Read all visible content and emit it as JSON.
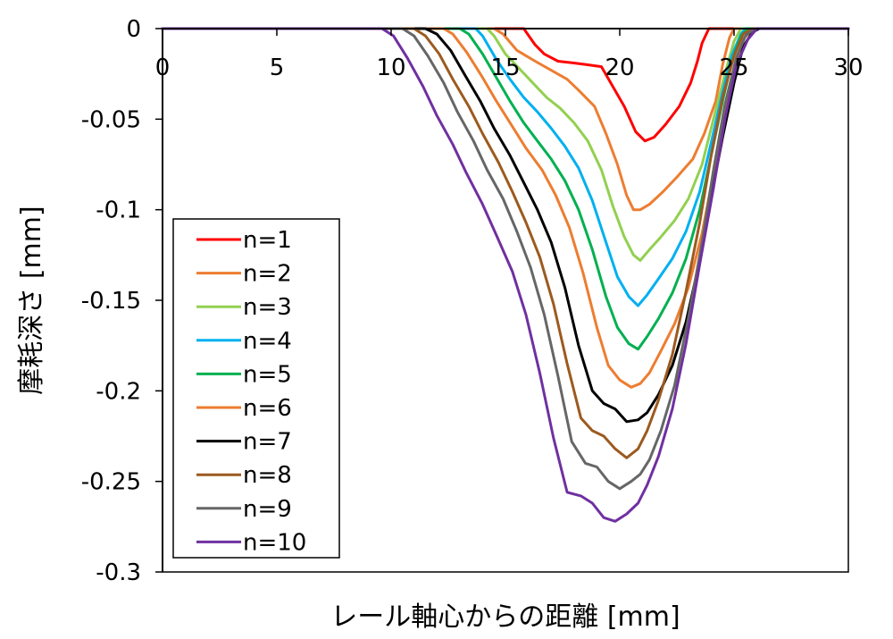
{
  "chart_data": {
    "type": "line",
    "title": "",
    "xlabel": "レール軸心からの距離 [mm]",
    "ylabel": "摩耗深さ [mm]",
    "xlim": [
      0,
      30
    ],
    "ylim": [
      -0.3,
      0
    ],
    "xticks": [
      0,
      5,
      10,
      15,
      20,
      25,
      30
    ],
    "yticks": [
      0,
      -0.05,
      -0.1,
      -0.15,
      -0.2,
      -0.25,
      -0.3
    ],
    "ytick_labels": [
      "0",
      "-0.05",
      "-0.1",
      "-0.15",
      "-0.2",
      "-0.25",
      "-0.3"
    ],
    "xaxis_position": "top",
    "grid": false,
    "legend_position": "lower-left",
    "series": [
      {
        "name": "n=1",
        "color": "#ff0000",
        "x": [
          0,
          15.8,
          16.3,
          16.7,
          17.3,
          18,
          18.6,
          19.2,
          19.7,
          20.2,
          20.7,
          21.1,
          21.5,
          22.0,
          22.6,
          23.1,
          23.4,
          23.6,
          23.9,
          24.2,
          30
        ],
        "y": [
          0,
          0,
          -0.009,
          -0.014,
          -0.018,
          -0.019,
          -0.02,
          -0.021,
          -0.032,
          -0.043,
          -0.057,
          -0.062,
          -0.06,
          -0.053,
          -0.043,
          -0.03,
          -0.018,
          -0.008,
          0,
          0,
          0
        ]
      },
      {
        "name": "n=2",
        "color": "#ed7d31",
        "x": [
          0,
          14.5,
          14.9,
          15.5,
          16.3,
          17.0,
          17.7,
          18.2,
          18.9,
          19.4,
          19.9,
          20.3,
          20.6,
          20.9,
          21.3,
          21.9,
          22.5,
          23.2,
          23.7,
          24.2,
          24.5,
          24.8,
          25.0,
          30
        ],
        "y": [
          0,
          0,
          -0.003,
          -0.012,
          -0.018,
          -0.023,
          -0.028,
          -0.034,
          -0.043,
          -0.058,
          -0.075,
          -0.092,
          -0.1,
          -0.1,
          -0.097,
          -0.09,
          -0.082,
          -0.072,
          -0.058,
          -0.04,
          -0.02,
          -0.005,
          0,
          0
        ]
      },
      {
        "name": "n=3",
        "color": "#92d050",
        "x": [
          0,
          14.2,
          14.5,
          15.0,
          15.6,
          16.2,
          16.8,
          17.4,
          18.0,
          18.6,
          19.2,
          19.7,
          20.2,
          20.6,
          20.9,
          21.3,
          21.8,
          22.4,
          23.0,
          23.6,
          24.1,
          24.6,
          25.0,
          25.3,
          30
        ],
        "y": [
          0,
          0,
          -0.004,
          -0.014,
          -0.022,
          -0.03,
          -0.038,
          -0.044,
          -0.052,
          -0.062,
          -0.078,
          -0.098,
          -0.115,
          -0.125,
          -0.128,
          -0.122,
          -0.115,
          -0.106,
          -0.094,
          -0.075,
          -0.05,
          -0.025,
          -0.007,
          0,
          0
        ]
      },
      {
        "name": "n=4",
        "color": "#00b0f0",
        "x": [
          0,
          13.7,
          14.0,
          14.6,
          15.2,
          15.8,
          16.4,
          17.0,
          17.6,
          18.2,
          18.8,
          19.4,
          19.9,
          20.4,
          20.8,
          21.2,
          21.7,
          22.3,
          22.9,
          23.5,
          24.0,
          24.5,
          24.9,
          25.3,
          25.5,
          30
        ],
        "y": [
          0,
          0,
          -0.004,
          -0.017,
          -0.028,
          -0.038,
          -0.046,
          -0.055,
          -0.065,
          -0.077,
          -0.095,
          -0.118,
          -0.137,
          -0.148,
          -0.153,
          -0.147,
          -0.138,
          -0.127,
          -0.112,
          -0.09,
          -0.063,
          -0.035,
          -0.015,
          -0.003,
          0,
          0
        ]
      },
      {
        "name": "n=5",
        "color": "#00b050",
        "x": [
          0,
          13.0,
          13.4,
          14.0,
          14.6,
          15.2,
          15.8,
          16.4,
          17.0,
          17.6,
          18.2,
          18.8,
          19.4,
          19.9,
          20.4,
          20.8,
          21.2,
          21.7,
          22.3,
          22.9,
          23.5,
          24.0,
          24.5,
          24.9,
          25.3,
          25.6,
          30
        ],
        "y": [
          0,
          0,
          -0.003,
          -0.014,
          -0.027,
          -0.04,
          -0.052,
          -0.062,
          -0.072,
          -0.084,
          -0.1,
          -0.122,
          -0.148,
          -0.165,
          -0.174,
          -0.177,
          -0.17,
          -0.16,
          -0.146,
          -0.127,
          -0.1,
          -0.07,
          -0.04,
          -0.018,
          -0.004,
          0,
          0
        ]
      },
      {
        "name": "n=6",
        "color": "#ed7d31",
        "x": [
          0,
          12.3,
          12.7,
          13.3,
          14.0,
          14.6,
          15.3,
          15.9,
          16.6,
          17.2,
          17.8,
          18.4,
          19.0,
          19.5,
          20.0,
          20.5,
          20.9,
          21.3,
          21.8,
          22.4,
          23.0,
          23.6,
          24.1,
          24.6,
          25.0,
          25.4,
          25.8,
          30
        ],
        "y": [
          0,
          0,
          -0.003,
          -0.013,
          -0.027,
          -0.04,
          -0.054,
          -0.066,
          -0.078,
          -0.092,
          -0.11,
          -0.135,
          -0.165,
          -0.186,
          -0.194,
          -0.198,
          -0.196,
          -0.19,
          -0.178,
          -0.163,
          -0.143,
          -0.113,
          -0.08,
          -0.047,
          -0.022,
          -0.006,
          0,
          0
        ]
      },
      {
        "name": "n=7",
        "color": "#000000",
        "x": [
          0,
          11.5,
          12.0,
          12.6,
          13.2,
          13.9,
          14.5,
          15.2,
          15.8,
          16.4,
          17.0,
          17.6,
          18.2,
          18.8,
          19.3,
          19.8,
          20.3,
          20.8,
          21.2,
          21.7,
          22.3,
          22.9,
          23.5,
          24.0,
          24.5,
          25.0,
          25.4,
          25.8,
          26.1,
          30
        ],
        "y": [
          0,
          0,
          -0.003,
          -0.012,
          -0.025,
          -0.04,
          -0.055,
          -0.07,
          -0.085,
          -0.1,
          -0.118,
          -0.143,
          -0.175,
          -0.2,
          -0.207,
          -0.21,
          -0.217,
          -0.216,
          -0.212,
          -0.202,
          -0.186,
          -0.162,
          -0.128,
          -0.093,
          -0.06,
          -0.03,
          -0.01,
          -0.002,
          0,
          0
        ]
      },
      {
        "name": "n=8",
        "color": "#9c5a1f",
        "x": [
          0,
          11.0,
          11.5,
          12.1,
          12.7,
          13.4,
          14.0,
          14.7,
          15.3,
          15.9,
          16.5,
          17.1,
          17.7,
          18.3,
          18.8,
          19.3,
          19.8,
          20.3,
          20.8,
          21.2,
          21.7,
          22.3,
          22.9,
          23.5,
          24.0,
          24.5,
          25.0,
          25.4,
          25.8,
          26.2,
          30
        ],
        "y": [
          0,
          0,
          -0.004,
          -0.014,
          -0.028,
          -0.043,
          -0.058,
          -0.074,
          -0.09,
          -0.107,
          -0.126,
          -0.152,
          -0.185,
          -0.215,
          -0.222,
          -0.225,
          -0.232,
          -0.237,
          -0.232,
          -0.222,
          -0.205,
          -0.18,
          -0.145,
          -0.107,
          -0.07,
          -0.038,
          -0.015,
          -0.003,
          0,
          0,
          0
        ]
      },
      {
        "name": "n=9",
        "color": "#666666",
        "x": [
          0,
          10.5,
          11.0,
          11.6,
          12.3,
          12.9,
          13.6,
          14.2,
          14.9,
          15.5,
          16.1,
          16.7,
          17.3,
          17.9,
          18.5,
          19.0,
          19.5,
          20.0,
          20.5,
          20.9,
          21.3,
          21.8,
          22.4,
          23.0,
          23.6,
          24.1,
          24.6,
          25.1,
          25.5,
          25.9,
          26.3,
          30
        ],
        "y": [
          0,
          0,
          -0.004,
          -0.015,
          -0.03,
          -0.046,
          -0.062,
          -0.078,
          -0.094,
          -0.112,
          -0.132,
          -0.158,
          -0.192,
          -0.228,
          -0.24,
          -0.242,
          -0.25,
          -0.254,
          -0.25,
          -0.246,
          -0.238,
          -0.222,
          -0.197,
          -0.16,
          -0.118,
          -0.078,
          -0.042,
          -0.016,
          -0.004,
          0,
          0,
          0
        ]
      },
      {
        "name": "n=10",
        "color": "#7030a0",
        "x": [
          0,
          9.6,
          10.1,
          10.7,
          11.4,
          12.0,
          12.7,
          13.3,
          14.0,
          14.6,
          15.3,
          15.9,
          16.5,
          17.1,
          17.7,
          18.3,
          18.8,
          19.3,
          19.8,
          20.3,
          20.8,
          21.2,
          21.7,
          22.3,
          22.9,
          23.5,
          24.1,
          24.6,
          25.1,
          25.6,
          26.0,
          26.4,
          26.7,
          30
        ],
        "y": [
          0,
          0,
          -0.004,
          -0.016,
          -0.032,
          -0.048,
          -0.064,
          -0.08,
          -0.097,
          -0.114,
          -0.134,
          -0.158,
          -0.19,
          -0.226,
          -0.256,
          -0.258,
          -0.262,
          -0.27,
          -0.272,
          -0.268,
          -0.262,
          -0.252,
          -0.236,
          -0.21,
          -0.174,
          -0.13,
          -0.088,
          -0.05,
          -0.02,
          -0.006,
          0,
          0,
          0,
          0
        ]
      }
    ]
  }
}
